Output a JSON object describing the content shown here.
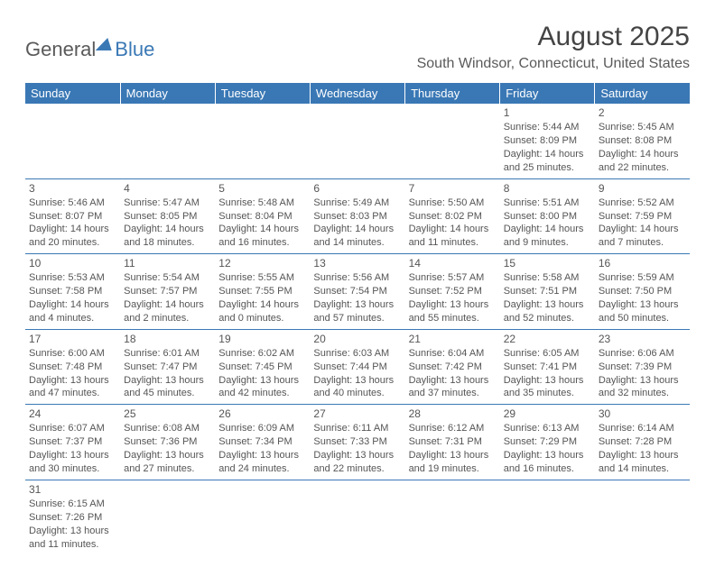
{
  "logo": {
    "text1": "General",
    "text2": "Blue"
  },
  "title": "August 2025",
  "location": "South Windsor, Connecticut, United States",
  "day_headers": [
    "Sunday",
    "Monday",
    "Tuesday",
    "Wednesday",
    "Thursday",
    "Friday",
    "Saturday"
  ],
  "colors": {
    "header_bg": "#3a78b5",
    "header_text": "#ffffff",
    "cell_border": "#3a78b5",
    "text": "#555555",
    "title": "#444444"
  },
  "weeks": [
    [
      null,
      null,
      null,
      null,
      null,
      {
        "n": "1",
        "sr": "Sunrise: 5:44 AM",
        "ss": "Sunset: 8:09 PM",
        "d1": "Daylight: 14 hours",
        "d2": "and 25 minutes."
      },
      {
        "n": "2",
        "sr": "Sunrise: 5:45 AM",
        "ss": "Sunset: 8:08 PM",
        "d1": "Daylight: 14 hours",
        "d2": "and 22 minutes."
      }
    ],
    [
      {
        "n": "3",
        "sr": "Sunrise: 5:46 AM",
        "ss": "Sunset: 8:07 PM",
        "d1": "Daylight: 14 hours",
        "d2": "and 20 minutes."
      },
      {
        "n": "4",
        "sr": "Sunrise: 5:47 AM",
        "ss": "Sunset: 8:05 PM",
        "d1": "Daylight: 14 hours",
        "d2": "and 18 minutes."
      },
      {
        "n": "5",
        "sr": "Sunrise: 5:48 AM",
        "ss": "Sunset: 8:04 PM",
        "d1": "Daylight: 14 hours",
        "d2": "and 16 minutes."
      },
      {
        "n": "6",
        "sr": "Sunrise: 5:49 AM",
        "ss": "Sunset: 8:03 PM",
        "d1": "Daylight: 14 hours",
        "d2": "and 14 minutes."
      },
      {
        "n": "7",
        "sr": "Sunrise: 5:50 AM",
        "ss": "Sunset: 8:02 PM",
        "d1": "Daylight: 14 hours",
        "d2": "and 11 minutes."
      },
      {
        "n": "8",
        "sr": "Sunrise: 5:51 AM",
        "ss": "Sunset: 8:00 PM",
        "d1": "Daylight: 14 hours",
        "d2": "and 9 minutes."
      },
      {
        "n": "9",
        "sr": "Sunrise: 5:52 AM",
        "ss": "Sunset: 7:59 PM",
        "d1": "Daylight: 14 hours",
        "d2": "and 7 minutes."
      }
    ],
    [
      {
        "n": "10",
        "sr": "Sunrise: 5:53 AM",
        "ss": "Sunset: 7:58 PM",
        "d1": "Daylight: 14 hours",
        "d2": "and 4 minutes."
      },
      {
        "n": "11",
        "sr": "Sunrise: 5:54 AM",
        "ss": "Sunset: 7:57 PM",
        "d1": "Daylight: 14 hours",
        "d2": "and 2 minutes."
      },
      {
        "n": "12",
        "sr": "Sunrise: 5:55 AM",
        "ss": "Sunset: 7:55 PM",
        "d1": "Daylight: 14 hours",
        "d2": "and 0 minutes."
      },
      {
        "n": "13",
        "sr": "Sunrise: 5:56 AM",
        "ss": "Sunset: 7:54 PM",
        "d1": "Daylight: 13 hours",
        "d2": "and 57 minutes."
      },
      {
        "n": "14",
        "sr": "Sunrise: 5:57 AM",
        "ss": "Sunset: 7:52 PM",
        "d1": "Daylight: 13 hours",
        "d2": "and 55 minutes."
      },
      {
        "n": "15",
        "sr": "Sunrise: 5:58 AM",
        "ss": "Sunset: 7:51 PM",
        "d1": "Daylight: 13 hours",
        "d2": "and 52 minutes."
      },
      {
        "n": "16",
        "sr": "Sunrise: 5:59 AM",
        "ss": "Sunset: 7:50 PM",
        "d1": "Daylight: 13 hours",
        "d2": "and 50 minutes."
      }
    ],
    [
      {
        "n": "17",
        "sr": "Sunrise: 6:00 AM",
        "ss": "Sunset: 7:48 PM",
        "d1": "Daylight: 13 hours",
        "d2": "and 47 minutes."
      },
      {
        "n": "18",
        "sr": "Sunrise: 6:01 AM",
        "ss": "Sunset: 7:47 PM",
        "d1": "Daylight: 13 hours",
        "d2": "and 45 minutes."
      },
      {
        "n": "19",
        "sr": "Sunrise: 6:02 AM",
        "ss": "Sunset: 7:45 PM",
        "d1": "Daylight: 13 hours",
        "d2": "and 42 minutes."
      },
      {
        "n": "20",
        "sr": "Sunrise: 6:03 AM",
        "ss": "Sunset: 7:44 PM",
        "d1": "Daylight: 13 hours",
        "d2": "and 40 minutes."
      },
      {
        "n": "21",
        "sr": "Sunrise: 6:04 AM",
        "ss": "Sunset: 7:42 PM",
        "d1": "Daylight: 13 hours",
        "d2": "and 37 minutes."
      },
      {
        "n": "22",
        "sr": "Sunrise: 6:05 AM",
        "ss": "Sunset: 7:41 PM",
        "d1": "Daylight: 13 hours",
        "d2": "and 35 minutes."
      },
      {
        "n": "23",
        "sr": "Sunrise: 6:06 AM",
        "ss": "Sunset: 7:39 PM",
        "d1": "Daylight: 13 hours",
        "d2": "and 32 minutes."
      }
    ],
    [
      {
        "n": "24",
        "sr": "Sunrise: 6:07 AM",
        "ss": "Sunset: 7:37 PM",
        "d1": "Daylight: 13 hours",
        "d2": "and 30 minutes."
      },
      {
        "n": "25",
        "sr": "Sunrise: 6:08 AM",
        "ss": "Sunset: 7:36 PM",
        "d1": "Daylight: 13 hours",
        "d2": "and 27 minutes."
      },
      {
        "n": "26",
        "sr": "Sunrise: 6:09 AM",
        "ss": "Sunset: 7:34 PM",
        "d1": "Daylight: 13 hours",
        "d2": "and 24 minutes."
      },
      {
        "n": "27",
        "sr": "Sunrise: 6:11 AM",
        "ss": "Sunset: 7:33 PM",
        "d1": "Daylight: 13 hours",
        "d2": "and 22 minutes."
      },
      {
        "n": "28",
        "sr": "Sunrise: 6:12 AM",
        "ss": "Sunset: 7:31 PM",
        "d1": "Daylight: 13 hours",
        "d2": "and 19 minutes."
      },
      {
        "n": "29",
        "sr": "Sunrise: 6:13 AM",
        "ss": "Sunset: 7:29 PM",
        "d1": "Daylight: 13 hours",
        "d2": "and 16 minutes."
      },
      {
        "n": "30",
        "sr": "Sunrise: 6:14 AM",
        "ss": "Sunset: 7:28 PM",
        "d1": "Daylight: 13 hours",
        "d2": "and 14 minutes."
      }
    ],
    [
      {
        "n": "31",
        "sr": "Sunrise: 6:15 AM",
        "ss": "Sunset: 7:26 PM",
        "d1": "Daylight: 13 hours",
        "d2": "and 11 minutes."
      },
      null,
      null,
      null,
      null,
      null,
      null
    ]
  ]
}
